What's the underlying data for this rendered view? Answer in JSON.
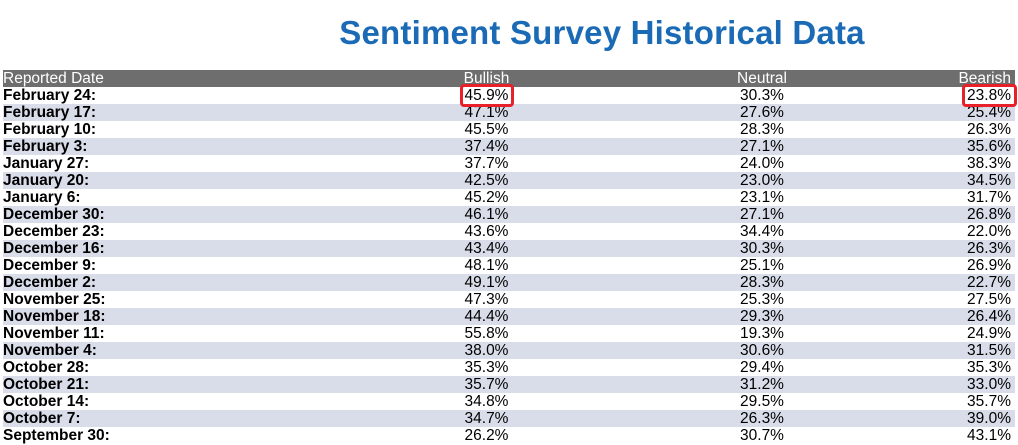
{
  "title": "Sentiment Survey Historical Data",
  "colors": {
    "title": "#1a6ab5",
    "header_bg": "#6e6e6e",
    "row_stripe": "#d8dde9",
    "highlight": "#e8202a"
  },
  "chart_data": {
    "type": "table",
    "title": "Sentiment Survey Historical Data",
    "columns": [
      "Reported Date",
      "Bullish",
      "Neutral",
      "Bearish"
    ],
    "rows": [
      [
        "February 24:",
        "45.9%",
        "30.3%",
        "23.8%"
      ],
      [
        "February 17:",
        "47.1%",
        "27.6%",
        "25.4%"
      ],
      [
        "February 10:",
        "45.5%",
        "28.3%",
        "26.3%"
      ],
      [
        "February 3:",
        "37.4%",
        "27.1%",
        "35.6%"
      ],
      [
        "January 27:",
        "37.7%",
        "24.0%",
        "38.3%"
      ],
      [
        "January 20:",
        "42.5%",
        "23.0%",
        "34.5%"
      ],
      [
        "January 6:",
        "45.2%",
        "23.1%",
        "31.7%"
      ],
      [
        "December 30:",
        "46.1%",
        "27.1%",
        "26.8%"
      ],
      [
        "December 23:",
        "43.6%",
        "34.4%",
        "22.0%"
      ],
      [
        "December 16:",
        "43.4%",
        "30.3%",
        "26.3%"
      ],
      [
        "December 9:",
        "48.1%",
        "25.1%",
        "26.9%"
      ],
      [
        "December 2:",
        "49.1%",
        "28.3%",
        "22.7%"
      ],
      [
        "November 25:",
        "47.3%",
        "25.3%",
        "27.5%"
      ],
      [
        "November 18:",
        "44.4%",
        "29.3%",
        "26.4%"
      ],
      [
        "November 11:",
        "55.8%",
        "19.3%",
        "24.9%"
      ],
      [
        "November 4:",
        "38.0%",
        "30.6%",
        "31.5%"
      ],
      [
        "October 28:",
        "35.3%",
        "29.4%",
        "35.3%"
      ],
      [
        "October 21:",
        "35.7%",
        "31.2%",
        "33.0%"
      ],
      [
        "October 14:",
        "34.8%",
        "29.5%",
        "35.7%"
      ],
      [
        "October 7:",
        "34.7%",
        "26.3%",
        "39.0%"
      ],
      [
        "September 30:",
        "26.2%",
        "30.7%",
        "43.1%"
      ]
    ],
    "highlighted_cells": [
      {
        "row": 0,
        "column": "Bullish"
      },
      {
        "row": 0,
        "column": "Bearish"
      }
    ]
  }
}
